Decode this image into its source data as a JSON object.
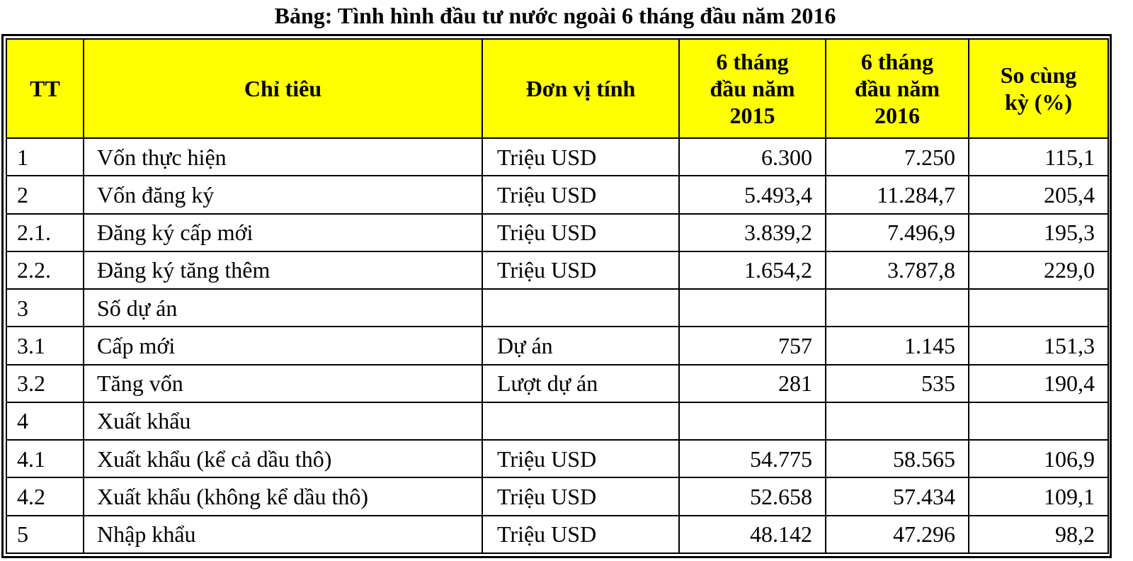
{
  "title": "Bảng: Tình hình đầu tư nước ngoài 6 tháng đầu năm 2016",
  "header_color": "#ffff00",
  "columns": {
    "tt": "TT",
    "indicator": "Chỉ tiêu",
    "unit": "Đơn vị tính",
    "h1_2015": [
      "6 tháng",
      "đầu năm",
      "2015"
    ],
    "h1_2016": [
      "6 tháng",
      "đầu năm",
      "2016"
    ],
    "yoy": [
      "So cùng",
      "kỳ (%)"
    ]
  },
  "rows": [
    {
      "tt": "1",
      "indicator": "Vốn thực hiện",
      "unit": "Triệu USD",
      "v2015": "6.300",
      "v2016": "7.250",
      "yoy": "115,1"
    },
    {
      "tt": "2",
      "indicator": "Vốn đăng ký",
      "unit": "Triệu USD",
      "v2015": "5.493,4",
      "v2016": "11.284,7",
      "yoy": "205,4"
    },
    {
      "tt": "2.1.",
      "indicator": "Đăng ký cấp mới",
      "unit": "Triệu USD",
      "v2015": "3.839,2",
      "v2016": "7.496,9",
      "yoy": "195,3"
    },
    {
      "tt": "2.2.",
      "indicator": "Đăng ký tăng thêm",
      "unit": "Triệu USD",
      "v2015": "1.654,2",
      "v2016": "3.787,8",
      "yoy": "229,0"
    },
    {
      "tt": "3",
      "indicator": "Số dự án",
      "unit": "",
      "v2015": "",
      "v2016": "",
      "yoy": ""
    },
    {
      "tt": "3.1",
      "indicator": "Cấp mới",
      "unit": "Dự án",
      "v2015": "757",
      "v2016": "1.145",
      "yoy": "151,3"
    },
    {
      "tt": "3.2",
      "indicator": "Tăng vốn",
      "unit": "Lượt dự án",
      "v2015": "281",
      "v2016": "535",
      "yoy": "190,4"
    },
    {
      "tt": "4",
      "indicator": "Xuất khẩu",
      "unit": "",
      "v2015": "",
      "v2016": "",
      "yoy": ""
    },
    {
      "tt": "4.1",
      "indicator": "Xuất khẩu (kể cả dầu thô)",
      "unit": "Triệu USD",
      "v2015": "54.775",
      "v2016": "58.565",
      "yoy": "106,9"
    },
    {
      "tt": "4.2",
      "indicator": "Xuất khẩu (không kể dầu thô)",
      "unit": "Triệu USD",
      "v2015": "52.658",
      "v2016": "57.434",
      "yoy": "109,1"
    },
    {
      "tt": "5",
      "indicator": "Nhập khẩu",
      "unit": "Triệu USD",
      "v2015": "48.142",
      "v2016": "47.296",
      "yoy": "98,2"
    }
  ]
}
